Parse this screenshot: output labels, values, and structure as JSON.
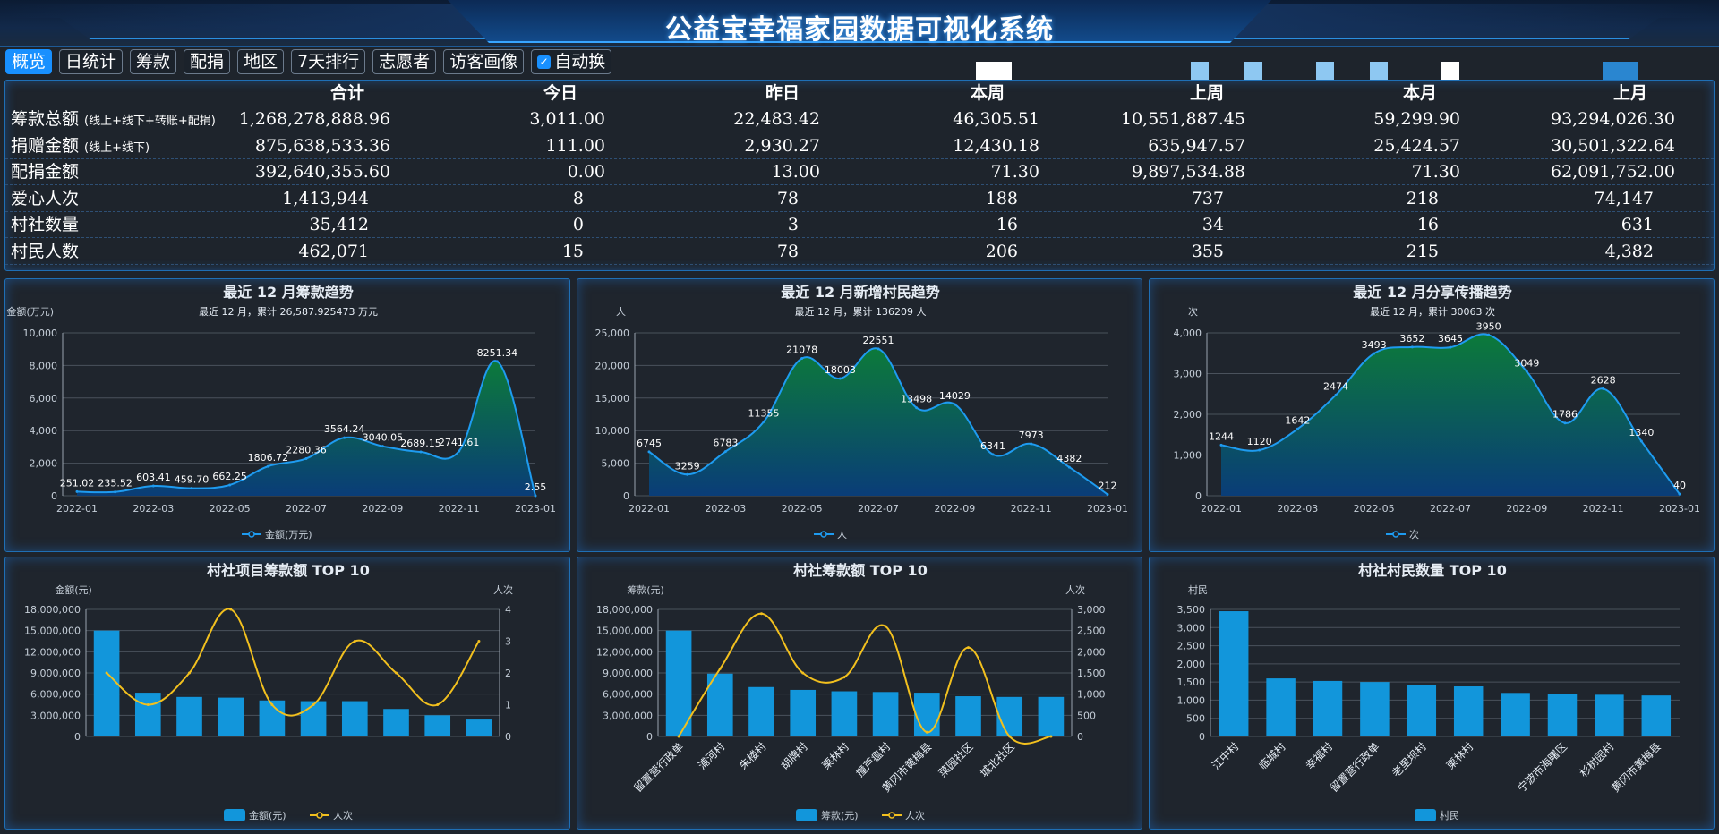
{
  "header": {
    "title": "公益宝幸福家园数据可视化系统"
  },
  "tabs": [
    {
      "label": "概览",
      "active": true
    },
    {
      "label": "日统计"
    },
    {
      "label": "筹款"
    },
    {
      "label": "配捐"
    },
    {
      "label": "地区"
    },
    {
      "label": "7天排行"
    },
    {
      "label": "志愿者"
    },
    {
      "label": "访客画像"
    }
  ],
  "auto_switch": {
    "label": "自动换",
    "checked": true
  },
  "summary": {
    "columns": [
      "合计",
      "今日",
      "昨日",
      "本周",
      "上周",
      "本月",
      "上月"
    ],
    "rows": [
      {
        "label": "筹款总额",
        "note": "(线上+线下+转账+配捐)",
        "values": [
          "1,268,278,888.96",
          "3,011.00",
          "22,483.42",
          "46,305.51",
          "10,551,887.45",
          "59,299.90",
          "93,294,026.30"
        ]
      },
      {
        "label": "捐赠金额",
        "note": "(线上+线下)",
        "values": [
          "875,638,533.36",
          "111.00",
          "2,930.27",
          "12,430.18",
          "635,947.57",
          "25,424.57",
          "30,501,322.64"
        ]
      },
      {
        "label": "配捐金额",
        "note": "",
        "values": [
          "392,640,355.60",
          "0.00",
          "13.00",
          "71.30",
          "9,897,534.88",
          "71.30",
          "62,091,752.00"
        ]
      },
      {
        "label": "爱心人次",
        "note": "",
        "values": [
          "1,413,944",
          "8",
          "78",
          "188",
          "737",
          "218",
          "74,147"
        ]
      },
      {
        "label": "村社数量",
        "note": "",
        "values": [
          "35,412",
          "0",
          "3",
          "16",
          "34",
          "16",
          "631"
        ]
      },
      {
        "label": "村民人数",
        "note": "",
        "values": [
          "462,071",
          "15",
          "78",
          "206",
          "355",
          "215",
          "4,382"
        ]
      }
    ]
  },
  "chart_data": [
    {
      "type": "area",
      "title": "最近 12 月筹款趋势",
      "subtitle": "最近 12 月，累计 26,587.925473 万元",
      "ylabel": "金额(万元)",
      "legend": "金额(万元)",
      "ylim": [
        0,
        10000
      ],
      "yticks": [
        "0",
        "2,000",
        "4,000",
        "6,000",
        "8,000",
        "10,000"
      ],
      "x": [
        "2022-01",
        "2022-02",
        "2022-03",
        "2022-04",
        "2022-05",
        "2022-06",
        "2022-07",
        "2022-08",
        "2022-09",
        "2022-10",
        "2022-11",
        "2022-12",
        "2023-01"
      ],
      "xticks": [
        "2022-01",
        "2022-03",
        "2022-05",
        "2022-07",
        "2022-09",
        "2022-11",
        "2023-01"
      ],
      "values": [
        251.02,
        235.52,
        603.41,
        459.7,
        662.25,
        1806.72,
        2280.36,
        3564.24,
        3040.05,
        2689.15,
        2741.61,
        8251.34,
        2.55
      ],
      "labels": [
        "251.02",
        "235.52",
        "603.41",
        "459.70",
        "662.25",
        "1806.72",
        "2280.36",
        "3564.24",
        "3040.05",
        "2689.15",
        "2741.61",
        "8251.34",
        "2.55"
      ]
    },
    {
      "type": "area",
      "title": "最近 12 月新增村民趋势",
      "subtitle": "最近 12 月，累计 136209 人",
      "ylabel": "人",
      "legend": "人",
      "ylim": [
        0,
        25000
      ],
      "yticks": [
        "0",
        "5,000",
        "10,000",
        "15,000",
        "20,000",
        "25,000"
      ],
      "x": [
        "2022-01",
        "2022-02",
        "2022-03",
        "2022-04",
        "2022-05",
        "2022-06",
        "2022-07",
        "2022-08",
        "2022-09",
        "2022-10",
        "2022-11",
        "2022-12",
        "2023-01"
      ],
      "xticks": [
        "2022-01",
        "2022-03",
        "2022-05",
        "2022-07",
        "2022-09",
        "2022-11",
        "2023-01"
      ],
      "values": [
        6745,
        3259,
        6783,
        11355,
        21078,
        18003,
        22551,
        13498,
        14029,
        6341,
        7973,
        4382,
        212
      ],
      "labels": [
        "6745",
        "3259",
        "6783",
        "11355",
        "21078",
        "18003",
        "22551",
        "13498",
        "14029",
        "6341",
        "7973",
        "4382",
        "212"
      ]
    },
    {
      "type": "area",
      "title": "最近 12 月分享传播趋势",
      "subtitle": "最近 12 月，累计 30063 次",
      "ylabel": "次",
      "legend": "次",
      "ylim": [
        0,
        4000
      ],
      "yticks": [
        "0",
        "1,000",
        "2,000",
        "3,000",
        "4,000"
      ],
      "x": [
        "2022-01",
        "2022-02",
        "2022-03",
        "2022-04",
        "2022-05",
        "2022-06",
        "2022-07",
        "2022-08",
        "2022-09",
        "2022-10",
        "2022-11",
        "2022-12",
        "2023-01"
      ],
      "xticks": [
        "2022-01",
        "2022-03",
        "2022-05",
        "2022-07",
        "2022-09",
        "2022-11",
        "2023-01"
      ],
      "values": [
        1244,
        1120,
        1642,
        2474,
        3493,
        3652,
        3645,
        3950,
        3049,
        1786,
        2628,
        1340,
        40
      ],
      "labels": [
        "1244",
        "1120",
        "1642",
        "2474",
        "3493",
        "3652",
        "3645",
        "3950",
        "3049",
        "1786",
        "2628",
        "1340",
        "40"
      ]
    },
    {
      "type": "bar",
      "title": "村社项目筹款额 TOP 10",
      "ylabel": "金额(元)",
      "y2label": "人次",
      "ylim": [
        0,
        18000000
      ],
      "y2lim": [
        0,
        4
      ],
      "yticks": [
        "0",
        "3,000,000",
        "6,000,000",
        "9,000,000",
        "12,000,000",
        "15,000,000",
        "18,000,000"
      ],
      "y2ticks": [
        "0",
        "1",
        "2",
        "3",
        "4"
      ],
      "categories": [
        "",
        "",
        "",
        "",
        "",
        "",
        "",
        "",
        "",
        ""
      ],
      "series": [
        {
          "name": "金额(元)",
          "type": "bar",
          "values": [
            15000000,
            6200000,
            5600000,
            5500000,
            5100000,
            5000000,
            5000000,
            3900000,
            3000000,
            2400000
          ]
        },
        {
          "name": "人次",
          "type": "line",
          "values": [
            2,
            1,
            2,
            4,
            1,
            1,
            3,
            2,
            1,
            3
          ]
        }
      ]
    },
    {
      "type": "bar",
      "title": "村社筹款额 TOP 10",
      "ylabel": "筹款(元)",
      "y2label": "人次",
      "ylim": [
        0,
        18000000
      ],
      "y2lim": [
        0,
        3000
      ],
      "yticks": [
        "0",
        "3,000,000",
        "6,000,000",
        "9,000,000",
        "12,000,000",
        "15,000,000",
        "18,000,000"
      ],
      "y2ticks": [
        "0",
        "500",
        "1,000",
        "1,500",
        "2,000",
        "2,500",
        "3,000"
      ],
      "categories": [
        "留置营行政单",
        "浦河村",
        "朱楼村",
        "胡牌村",
        "栗林村",
        "撞芦瘟村",
        "黄冈市黄梅县",
        "菜园社区",
        "城北社区",
        ""
      ],
      "series": [
        {
          "name": "筹款(元)",
          "type": "bar",
          "values": [
            15000000,
            8900000,
            7000000,
            6600000,
            6400000,
            6300000,
            6200000,
            5700000,
            5600000,
            5600000
          ]
        },
        {
          "name": "人次",
          "type": "line",
          "values": [
            0,
            1600,
            2900,
            1500,
            1400,
            2600,
            100,
            2100,
            0,
            0
          ]
        }
      ]
    },
    {
      "type": "bar",
      "title": "村社村民数量 TOP 10",
      "ylabel": "村民",
      "ylim": [
        0,
        3500
      ],
      "yticks": [
        "0",
        "500",
        "1,000",
        "1,500",
        "2,000",
        "2,500",
        "3,000",
        "3,500"
      ],
      "categories": [
        "江中村",
        "临城村",
        "幸福村",
        "留置营行政单",
        "老里坝村",
        "栗林村",
        "",
        "宁波市海曙区",
        "杉树园村",
        "黄冈市黄梅县"
      ],
      "series": [
        {
          "name": "村民",
          "type": "bar",
          "values": [
            3450,
            1600,
            1530,
            1500,
            1420,
            1380,
            1200,
            1180,
            1150,
            1130
          ]
        }
      ]
    }
  ],
  "colors": {
    "accent": "#1890ff",
    "bar": "#1296db",
    "line": "#f2c01e",
    "area_top": "#0c7a3a",
    "area_bottom": "#0a3d78",
    "border": "#1f6fb5"
  }
}
